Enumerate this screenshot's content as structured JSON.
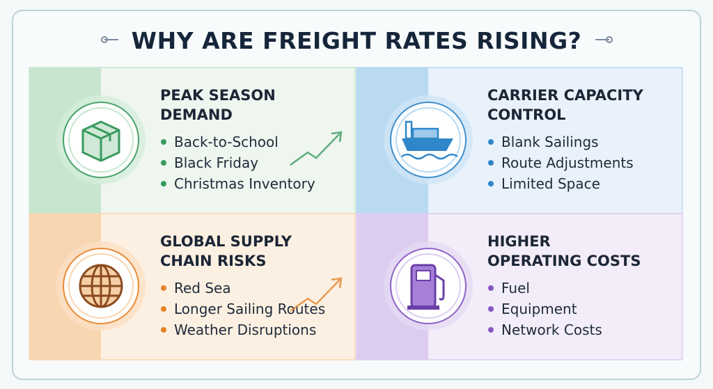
{
  "title": "WHY ARE FREIGHT RATES RISING?",
  "panels": [
    {
      "title_lines": [
        "PEAK SEASON",
        "DEMAND"
      ],
      "bullets": [
        "Back-to-School",
        "Black Friday",
        "Christmas Inventory"
      ]
    },
    {
      "title_lines": [
        "CARRIER CAPACITY",
        "CONTROL"
      ],
      "bullets": [
        "Blank Sailings",
        "Route Adjustments",
        "Limited Space"
      ]
    },
    {
      "title_lines": [
        "GLOBAL SUPPLY",
        "CHAIN RISKS"
      ],
      "bullets": [
        "Red Sea",
        "Longer Sailing Routes",
        "Weather Disruptions"
      ]
    },
    {
      "title_lines": [
        "HIGHER",
        "OPERATING COSTS"
      ],
      "bullets": [
        "Fuel",
        "Equipment",
        "Network Costs"
      ]
    }
  ]
}
